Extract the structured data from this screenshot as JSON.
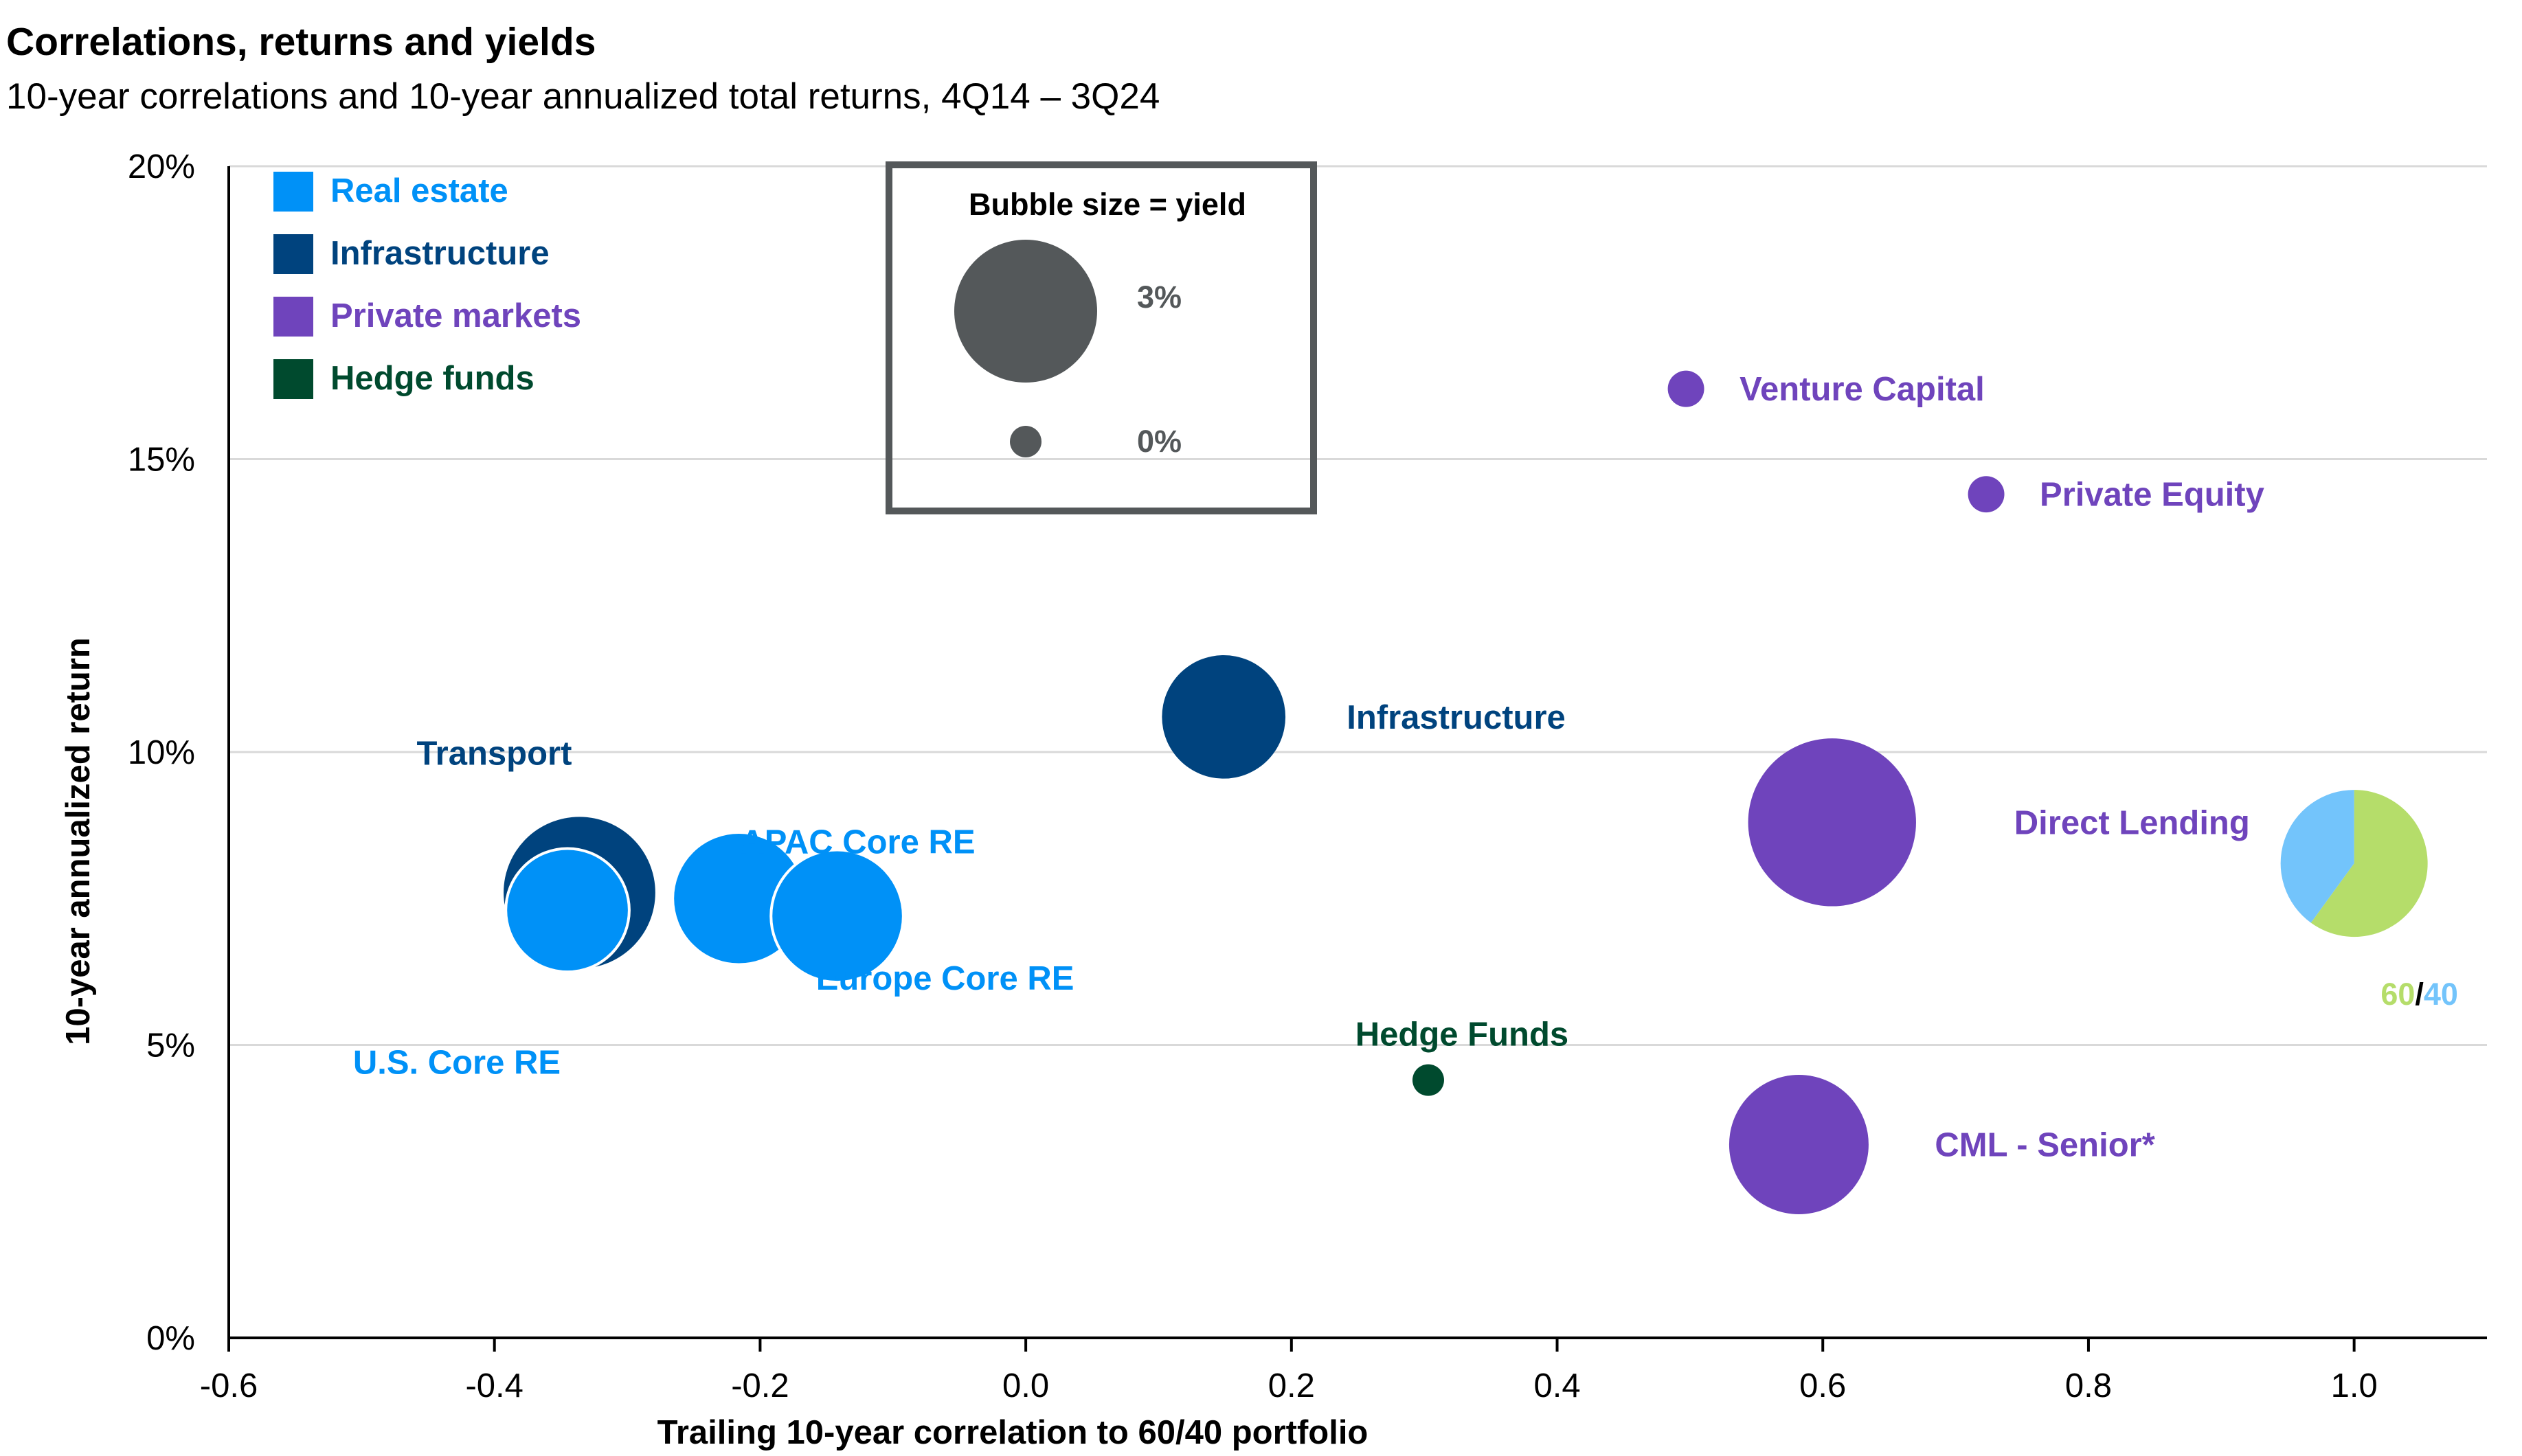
{
  "chart_data": {
    "type": "scatter",
    "title": "Correlations, returns and yields",
    "subtitle": "10-year correlations and 10-year annualized total returns, 4Q14 – 3Q24",
    "xlabel": "Trailing 10-year correlation to 60/40 portfolio",
    "ylabel": "10-year annualized return",
    "xlim": [
      -0.6,
      1.1
    ],
    "ylim": [
      0,
      20
    ],
    "x_ticks": [
      -0.6,
      -0.4,
      -0.2,
      0.0,
      0.2,
      0.4,
      0.6,
      0.8,
      1.0
    ],
    "x_tick_labels": [
      "-0.6",
      "-0.4",
      "-0.2",
      "0.0",
      "0.2",
      "0.4",
      "0.6",
      "0.8",
      "1.0"
    ],
    "y_ticks": [
      0,
      5,
      10,
      15,
      20
    ],
    "y_tick_labels": [
      "0%",
      "5%",
      "10%",
      "15%",
      "20%"
    ],
    "grid": "horizontal",
    "legend_placement": "top-left",
    "categories": [
      {
        "key": "real_estate",
        "name": "Real estate",
        "color": "#0091F7"
      },
      {
        "key": "infrastructure",
        "name": "Infrastructure",
        "color": "#00437E"
      },
      {
        "key": "private_markets",
        "name": "Private markets",
        "color": "#6F44BC"
      },
      {
        "key": "hedge_funds",
        "name": "Hedge funds",
        "color": "#004A2E"
      }
    ],
    "size_legend": {
      "title": "Bubble size = yield",
      "entries": [
        {
          "label": "3%",
          "yield": 3.0
        },
        {
          "label": "0%",
          "yield": 0.0
        }
      ]
    },
    "series": [
      {
        "name": "Transport",
        "category": "infrastructure",
        "x": -0.336,
        "y": 7.6,
        "yield": 3.4
      },
      {
        "name": "U.S. Core RE",
        "category": "real_estate",
        "x": -0.345,
        "y": 7.3,
        "yield": 2.2
      },
      {
        "name": "APAC Core RE",
        "category": "real_estate",
        "x": -0.216,
        "y": 7.5,
        "yield": 2.55
      },
      {
        "name": "Europe Core RE",
        "category": "real_estate",
        "x": -0.142,
        "y": 7.2,
        "yield": 2.55
      },
      {
        "name": "Infrastructure",
        "category": "infrastructure",
        "x": 0.149,
        "y": 10.6,
        "yield": 2.2
      },
      {
        "name": "Venture Capital",
        "category": "private_markets",
        "x": 0.497,
        "y": 16.2,
        "yield": 0.05
      },
      {
        "name": "Private Equity",
        "category": "private_markets",
        "x": 0.723,
        "y": 14.4,
        "yield": 0.05
      },
      {
        "name": "Direct Lending",
        "category": "private_markets",
        "x": 0.607,
        "y": 8.8,
        "yield": 4.2
      },
      {
        "name": "Hedge Funds",
        "category": "hedge_funds",
        "x": 0.303,
        "y": 4.4,
        "yield": 0.0
      },
      {
        "name": "CML - Senior*",
        "category": "private_markets",
        "x": 0.582,
        "y": 3.3,
        "yield": 2.85
      }
    ],
    "portfolio_marker": {
      "label_a": "60",
      "separator": "/",
      "label_b": "40",
      "x": 1.0,
      "y": 8.1,
      "share_a": 0.6,
      "share_b": 0.4,
      "color_a": "#B5DD6A",
      "color_b": "#73C4FB"
    }
  }
}
